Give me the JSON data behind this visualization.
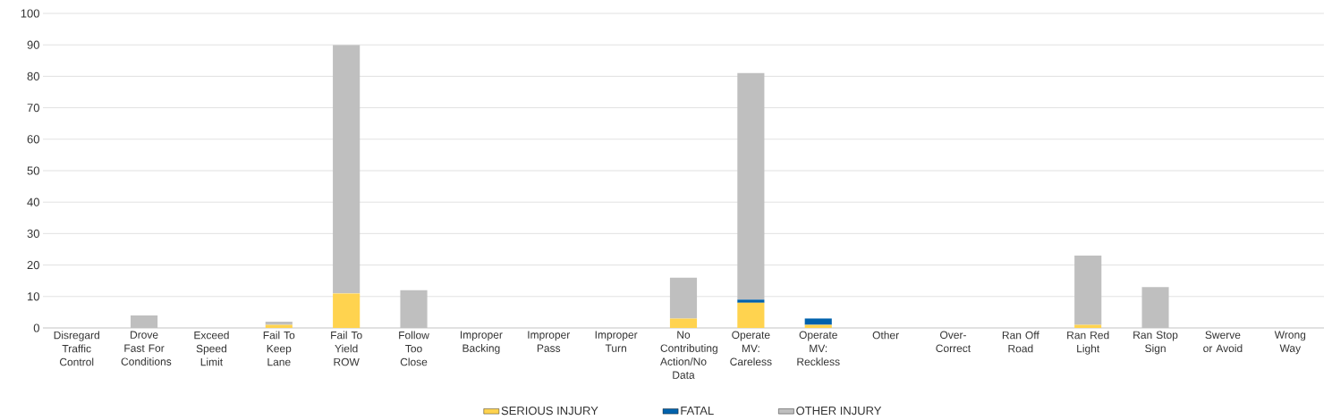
{
  "chart_data": {
    "type": "bar",
    "stacked": true,
    "categories": [
      "Disregard Traffic Control",
      "Drove Fast For Conditions",
      "Exceed Speed Limit",
      "Fail To Keep Lane",
      "Fail To Yield ROW",
      "Follow Too Close",
      "Improper Backing",
      "Improper Pass",
      "Improper Turn",
      "No Contributing Action/No Data",
      "Operate MV: Careless",
      "Operate MV: Reckless",
      "Other",
      "Over-Correct",
      "Ran Off Road",
      "Ran Red Light",
      "Ran Stop Sign",
      "Swerve or Avoid",
      "Wrong Way"
    ],
    "series": [
      {
        "name": "SERIOUS INJURY",
        "color": "#ffd34f",
        "values": [
          0,
          0,
          0,
          1,
          11,
          0,
          0,
          0,
          0,
          3,
          8,
          1,
          0,
          0,
          0,
          1,
          0,
          0,
          0
        ]
      },
      {
        "name": "FATAL",
        "color": "#0062ac",
        "values": [
          0,
          0,
          0,
          0,
          0,
          0,
          0,
          0,
          0,
          0,
          1,
          2,
          0,
          0,
          0,
          0,
          0,
          0,
          0
        ]
      },
      {
        "name": "OTHER INJURY",
        "color": "#bfbfbf",
        "values": [
          0,
          4,
          0,
          1,
          79,
          12,
          0,
          0,
          0,
          13,
          72,
          0,
          0,
          0,
          0,
          22,
          13,
          0,
          0
        ]
      }
    ],
    "ylim": [
      0,
      100
    ],
    "yticks": [
      0,
      10,
      20,
      30,
      40,
      50,
      60,
      70,
      80,
      90,
      100
    ],
    "grid": "y",
    "legend": "bottom"
  }
}
